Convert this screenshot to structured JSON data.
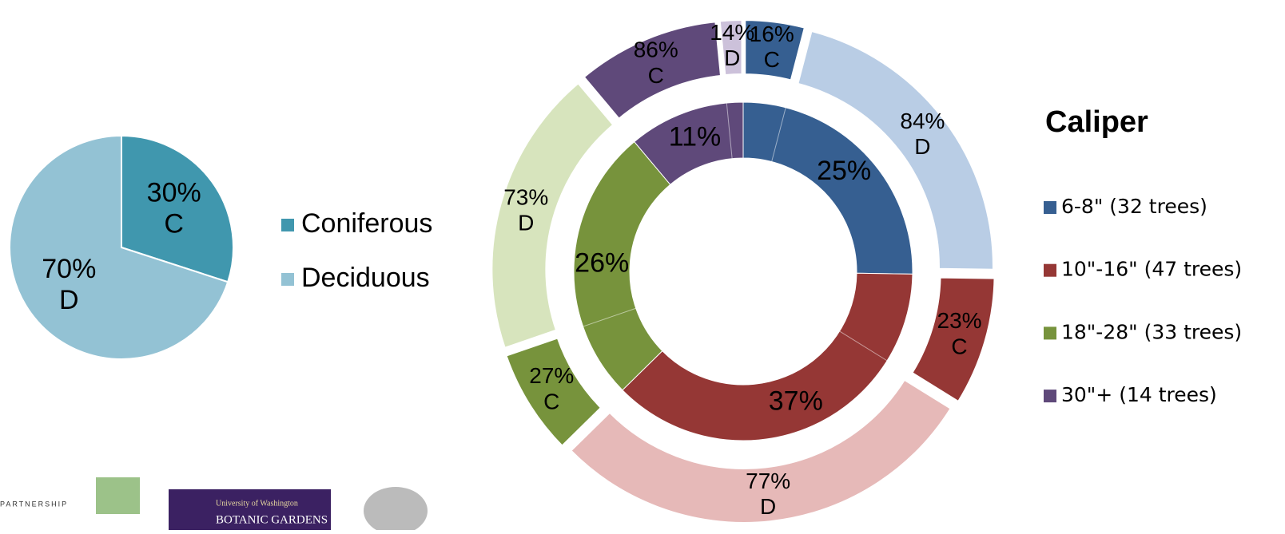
{
  "chart_data": [
    {
      "type": "pie",
      "categories": [
        "Coniferous",
        "Deciduous"
      ],
      "values": [
        30,
        70
      ],
      "value_labels": [
        "30%",
        "70%"
      ],
      "abbreviations": [
        "C",
        "D"
      ],
      "colors": [
        "#4097ae",
        "#93c2d4"
      ],
      "legend": "right"
    },
    {
      "type": "doughnut",
      "title": "Caliper",
      "categories": [
        "6-8\" (32 trees)",
        "10\"-16\" (47 trees)",
        "18\"-28\" (33 trees)",
        "30\"+ (14 trees)"
      ],
      "values": [
        25,
        37,
        26,
        11
      ],
      "value_labels": [
        "25%",
        "37%",
        "26%",
        "11%"
      ],
      "colors": [
        "#365f91",
        "#953735",
        "#77933c",
        "#5f497a"
      ],
      "breakdown": [
        {
          "labels": [
            "C",
            "D"
          ],
          "values": [
            16,
            84
          ],
          "value_labels": [
            "16%",
            "84%"
          ],
          "colors": [
            "#365f91",
            "#b9cde5"
          ]
        },
        {
          "labels": [
            "C",
            "D"
          ],
          "values": [
            23,
            77
          ],
          "value_labels": [
            "23%",
            "77%"
          ],
          "colors": [
            "#953735",
            "#e6b9b8"
          ]
        },
        {
          "labels": [
            "C",
            "D"
          ],
          "values": [
            27,
            73
          ],
          "value_labels": [
            "27%",
            "73%"
          ],
          "colors": [
            "#77933c",
            "#d7e4bd"
          ]
        },
        {
          "labels": [
            "C",
            "D"
          ],
          "values": [
            86,
            14
          ],
          "value_labels": [
            "86%",
            "14%"
          ],
          "colors": [
            "#5f497a",
            "#ccc1da"
          ]
        }
      ],
      "legend": "right"
    }
  ],
  "logos": {
    "partnership": "PARTNERSHIP",
    "uw": "University of Washington",
    "botanic": "BOTANIC GARDENS"
  }
}
